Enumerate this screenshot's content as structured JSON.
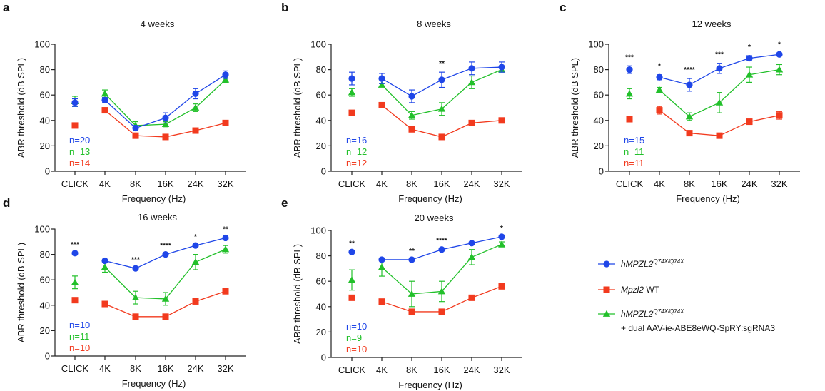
{
  "colors": {
    "blue": "#1f46e8",
    "red": "#f23a1e",
    "green": "#22c02a",
    "axis": "#222222"
  },
  "legend": {
    "items": [
      {
        "series": "blue",
        "marker": "circle",
        "label": "hMPZL2",
        "superscript": "Q74X/Q74X",
        "italic": true
      },
      {
        "series": "red",
        "marker": "square",
        "label_italic": "Mpzl2",
        "label_rest": " WT"
      },
      {
        "series": "green",
        "marker": "triangle",
        "label": "hMPZL2",
        "superscript": "Q74X/Q74X",
        "italic": true,
        "line2": "+ dual AAV-ie-ABE8eWQ-SpRY:sgRNA3"
      }
    ]
  },
  "chart_data": [
    {
      "panel": "a",
      "type": "line",
      "title": "4 weeks",
      "xlabel": "Frequency (Hz)",
      "ylabel": "ABR threshold (dB SPL)",
      "categories": [
        "CLICK",
        "4K",
        "8K",
        "16K",
        "24K",
        "32K"
      ],
      "ylim": [
        0,
        100
      ],
      "yticks": [
        0,
        20,
        40,
        60,
        80,
        100
      ],
      "grid": false,
      "series": [
        {
          "name": "hMPZL2 Q74X/Q74X",
          "color": "blue",
          "marker": "circle",
          "values": [
            54,
            56,
            34,
            42,
            61,
            76
          ],
          "errors": [
            3,
            2,
            2,
            4,
            4,
            3
          ]
        },
        {
          "name": "hMPZL2 Q74X/Q74X + dual AAV-ie-ABE8eWQ-SpRY:sgRNA3",
          "color": "green",
          "marker": "triangle",
          "values": [
            55,
            61,
            36,
            37,
            50,
            72
          ],
          "errors": [
            4,
            3,
            3,
            2,
            3,
            2
          ]
        },
        {
          "name": "Mpzl2 WT",
          "color": "red",
          "marker": "square",
          "values": [
            36,
            48,
            28,
            27,
            32,
            38
          ],
          "errors": [
            2,
            2,
            2,
            1,
            1,
            2
          ]
        }
      ],
      "n_labels": [
        "n=20",
        "n=13",
        "n=14"
      ],
      "significance": [
        "",
        "",
        "",
        "",
        "",
        ""
      ]
    },
    {
      "panel": "b",
      "type": "line",
      "title": "8 weeks",
      "xlabel": "Frequency (Hz)",
      "ylabel": "ABR threshold (dB SPL)",
      "categories": [
        "CLICK",
        "4K",
        "8K",
        "16K",
        "24K",
        "32K"
      ],
      "ylim": [
        0,
        100
      ],
      "yticks": [
        0,
        20,
        40,
        60,
        80,
        100
      ],
      "grid": false,
      "series": [
        {
          "name": "hMPZL2 Q74X/Q74X",
          "color": "blue",
          "marker": "circle",
          "values": [
            73,
            73,
            59,
            72,
            81,
            82
          ],
          "errors": [
            5,
            4,
            5,
            6,
            5,
            4
          ]
        },
        {
          "name": "hMPZL2 Q74X/Q74X + dual AAV-ie-ABE8eWQ-SpRY:sgRNA3",
          "color": "green",
          "marker": "triangle",
          "values": [
            62,
            68,
            44,
            49,
            70,
            80
          ],
          "errors": [
            3,
            1,
            3,
            5,
            5,
            2
          ]
        },
        {
          "name": "Mpzl2 WT",
          "color": "red",
          "marker": "square",
          "values": [
            46,
            52,
            33,
            27,
            38,
            40
          ],
          "errors": [
            2,
            2,
            2,
            1,
            2,
            2
          ]
        }
      ],
      "n_labels": [
        "n=16",
        "n=12",
        "n=12"
      ],
      "significance": [
        "",
        "",
        "",
        "**",
        "",
        ""
      ]
    },
    {
      "panel": "c",
      "type": "line",
      "title": "12 weeks",
      "xlabel": "Frequency (Hz)",
      "ylabel": "ABR threshold (dB SPL)",
      "categories": [
        "CLICK",
        "4K",
        "8K",
        "16K",
        "24K",
        "32K"
      ],
      "ylim": [
        0,
        100
      ],
      "yticks": [
        0,
        20,
        40,
        60,
        80,
        100
      ],
      "grid": false,
      "series": [
        {
          "name": "hMPZL2 Q74X/Q74X",
          "color": "blue",
          "marker": "circle",
          "values": [
            80,
            74,
            68,
            81,
            89,
            92
          ],
          "errors": [
            3,
            2,
            5,
            4,
            2,
            1
          ]
        },
        {
          "name": "hMPZL2 Q74X/Q74X + dual AAV-ie-ABE8eWQ-SpRY:sgRNA3",
          "color": "green",
          "marker": "triangle",
          "values": [
            61,
            64,
            43,
            54,
            76,
            80
          ],
          "errors": [
            4,
            2,
            3,
            8,
            6,
            4
          ]
        },
        {
          "name": "Mpzl2 WT",
          "color": "red",
          "marker": "square",
          "values": [
            41,
            48,
            30,
            28,
            39,
            44
          ],
          "errors": [
            1,
            3,
            1,
            1,
            2,
            3
          ]
        }
      ],
      "n_labels": [
        "n=15",
        "n=11",
        "n=11"
      ],
      "significance": [
        "***",
        "*",
        "****",
        "***",
        "*",
        "*"
      ]
    },
    {
      "panel": "d",
      "type": "line",
      "title": "16 weeks",
      "xlabel": "Frequency (Hz)",
      "ylabel": "ABR threshold (dB SPL)",
      "categories": [
        "CLICK",
        "4K",
        "8K",
        "16K",
        "24K",
        "32K"
      ],
      "ylim": [
        0,
        100
      ],
      "yticks": [
        0,
        20,
        40,
        60,
        80,
        100
      ],
      "grid": false,
      "series": [
        {
          "name": "hMPZL2 Q74X/Q74X",
          "color": "blue",
          "marker": "circle",
          "values": [
            81,
            75,
            69,
            80,
            87,
            93
          ],
          "errors": [
            0,
            0,
            0,
            0,
            0,
            0
          ]
        },
        {
          "name": "hMPZL2 Q74X/Q74X + dual AAV-ie-ABE8eWQ-SpRY:sgRNA3",
          "color": "green",
          "marker": "triangle",
          "values": [
            58,
            70,
            46,
            45,
            74,
            84
          ],
          "errors": [
            5,
            4,
            5,
            5,
            6,
            3
          ]
        },
        {
          "name": "Mpzl2 WT",
          "color": "red",
          "marker": "square",
          "values": [
            44,
            41,
            31,
            31,
            43,
            51
          ],
          "errors": [
            0,
            0,
            0,
            0,
            0,
            0
          ]
        }
      ],
      "n_labels": [
        "n=10",
        "n=11",
        "n=10"
      ],
      "significance": [
        "***",
        "",
        "***",
        "****",
        "*",
        "**"
      ]
    },
    {
      "panel": "e",
      "type": "line",
      "title": "20 weeks",
      "xlabel": "Frequency (Hz)",
      "ylabel": "ABR threshold (dB SPL)",
      "categories": [
        "CLICK",
        "4K",
        "8K",
        "16K",
        "24K",
        "32K"
      ],
      "ylim": [
        0,
        100
      ],
      "yticks": [
        0,
        20,
        40,
        60,
        80,
        100
      ],
      "grid": false,
      "series": [
        {
          "name": "hMPZL2 Q74X/Q74X",
          "color": "blue",
          "marker": "circle",
          "values": [
            83,
            77,
            77,
            85,
            90,
            95
          ],
          "errors": [
            0,
            0,
            0,
            0,
            0,
            0
          ]
        },
        {
          "name": "hMPZL2 Q74X/Q74X + dual AAV-ie-ABE8eWQ-SpRY:sgRNA3",
          "color": "green",
          "marker": "triangle",
          "values": [
            61,
            71,
            50,
            52,
            79,
            89
          ],
          "errors": [
            8,
            7,
            10,
            8,
            6,
            2
          ]
        },
        {
          "name": "Mpzl2 WT",
          "color": "red",
          "marker": "square",
          "values": [
            47,
            44,
            36,
            36,
            47,
            56
          ],
          "errors": [
            0,
            0,
            0,
            0,
            0,
            0
          ]
        }
      ],
      "n_labels": [
        "n=10",
        "n=9",
        "n=10"
      ],
      "significance": [
        "**",
        "",
        "**",
        "****",
        "",
        "*"
      ]
    }
  ]
}
